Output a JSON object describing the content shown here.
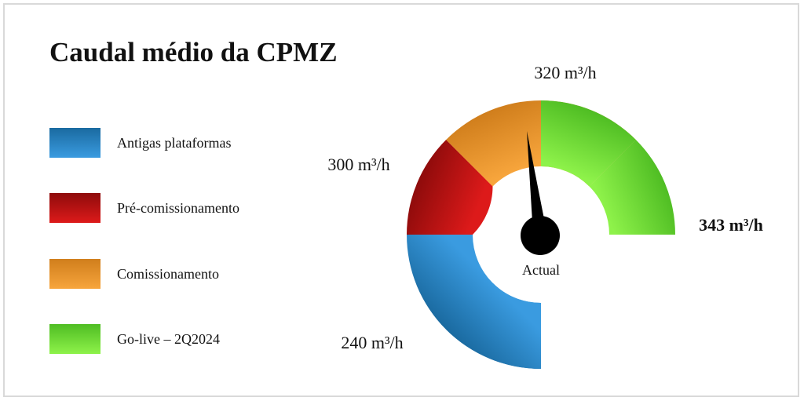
{
  "title": "Caudal médio da CPMZ",
  "legend": [
    {
      "label": "Antigas plataformas",
      "color_light": "#3a9be0",
      "color_dark": "#1a6aa0",
      "icon": "blue-swatch"
    },
    {
      "label": "Pré-comissionamento",
      "color_light": "#dd1a1a",
      "color_dark": "#8e0b0b",
      "icon": "red-swatch"
    },
    {
      "label": "Comissionamento",
      "color_light": "#f7a53c",
      "color_dark": "#d07e1c",
      "icon": "orange-swatch"
    },
    {
      "label": "Go-live – 2Q2024",
      "color_light": "#8ef24a",
      "color_dark": "#4fbd23",
      "icon": "green-swatch"
    }
  ],
  "chart_data": {
    "type": "gauge",
    "title": "Caudal médio da CPMZ",
    "unit": "m³/h",
    "segments": [
      {
        "name": "Antigas plataformas",
        "color": "#2580c3"
      },
      {
        "name": "Pré-comissionamento",
        "color": "#c41212"
      },
      {
        "name": "Comissionamento",
        "color": "#ec9530"
      },
      {
        "name": "Go-live – 2Q2024",
        "color": "#6ee03a"
      }
    ],
    "threshold_labels": [
      {
        "value": 240,
        "text": "240 m³/h"
      },
      {
        "value": 300,
        "text": "300 m³/h"
      },
      {
        "value": 320,
        "text": "320 m³/h"
      },
      {
        "value": 343,
        "text": "343 m³/h",
        "bold": true
      }
    ],
    "needle": {
      "label": "Actual",
      "value": 320,
      "color": "#000000"
    }
  }
}
